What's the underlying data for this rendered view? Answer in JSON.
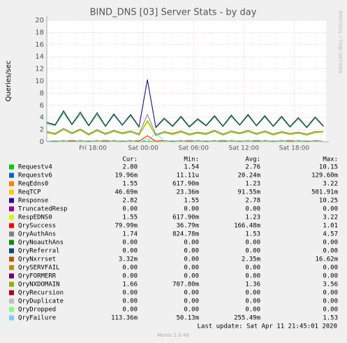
{
  "chart_data": {
    "type": "line",
    "title": "BIND_DNS [03] Server Stats - by day",
    "y_label": "Queries/sec",
    "side_text": "RRDTOOL / TOBI OETIKER",
    "footer": "Last update: Sat Apr 11 21:45:01 2020",
    "version": "Munin 2.0.49",
    "legend_headers": [
      "Cur:",
      "Min:",
      "Avg:",
      "Max:"
    ],
    "grid": true,
    "xlim": [
      12.5,
      45.8
    ],
    "xticks": [
      {
        "value": 18,
        "label": "Fri 18:00"
      },
      {
        "value": 24,
        "label": "Sat 00:00"
      },
      {
        "value": 30,
        "label": "Sat 06:00"
      },
      {
        "value": 36,
        "label": "Sat 12:00"
      },
      {
        "value": 42,
        "label": "Sat 18:00"
      }
    ],
    "ylim": [
      0,
      20
    ],
    "yticks": [
      0,
      2,
      4,
      6,
      8,
      10,
      12,
      14,
      16,
      18,
      20
    ],
    "x": [
      12.5,
      13.5,
      14.5,
      15.5,
      16.5,
      17.5,
      18.5,
      19.5,
      20.5,
      21.5,
      22.5,
      23.5,
      24.5,
      25.5,
      26.5,
      27.5,
      28.5,
      29.5,
      30.5,
      31.5,
      32.5,
      33.5,
      34.5,
      35.5,
      36.5,
      37.5,
      38.5,
      39.5,
      40.5,
      41.5,
      42.5,
      43.5,
      44.5,
      45.5
    ],
    "series": [
      {
        "name": "Requestv4",
        "color": "#00cc00",
        "legend_values": [
          "2.80",
          "1.54",
          "2.76",
          "10.15"
        ],
        "values": [
          3.0,
          2.7,
          4.8,
          2.8,
          4.6,
          2.6,
          4.5,
          2.5,
          4.4,
          2.7,
          4.3,
          2.4,
          10.15,
          2.3,
          3.7,
          2.5,
          4.0,
          2.4,
          3.6,
          2.6,
          4.1,
          2.5,
          4.2,
          2.7,
          4.3,
          2.6,
          4.1,
          2.5,
          4.0,
          2.4,
          3.8,
          2.3,
          3.9,
          2.5
        ]
      },
      {
        "name": "Requestv6",
        "color": "#0066b3",
        "legend_values": [
          "19.96m",
          "11.11u",
          "20.24m",
          "129.60m"
        ],
        "values": [
          0,
          0,
          0,
          0,
          0,
          0,
          0,
          0,
          0,
          0,
          0,
          0,
          0.1,
          0,
          0,
          0,
          0,
          0,
          0,
          0,
          0,
          0,
          0,
          0,
          0,
          0,
          0,
          0,
          0,
          0,
          0,
          0,
          0,
          0
        ]
      },
      {
        "name": "ReqEdns0",
        "color": "#ff8000",
        "legend_values": [
          "1.55",
          "617.90m",
          "1.23",
          "3.22"
        ],
        "values": [
          1.6,
          1.3,
          2.1,
          1.4,
          2.0,
          1.2,
          1.9,
          1.3,
          1.8,
          1.4,
          1.7,
          1.2,
          3.2,
          1.1,
          1.6,
          1.3,
          1.7,
          1.2,
          1.5,
          1.3,
          1.8,
          1.2,
          1.7,
          1.4,
          1.8,
          1.3,
          1.7,
          1.2,
          1.6,
          1.3,
          1.5,
          1.2,
          1.6,
          1.5
        ]
      },
      {
        "name": "ReqTCP",
        "color": "#ffcc00",
        "legend_values": [
          "46.69m",
          "23.36m",
          "91.55m",
          "501.91m"
        ],
        "values": [
          0.05,
          0.05,
          0.1,
          0.05,
          0.1,
          0.05,
          0.1,
          0.05,
          0.1,
          0.05,
          0.1,
          0.05,
          0.5,
          0.05,
          0.1,
          0.05,
          0.1,
          0.05,
          0.1,
          0.05,
          0.1,
          0.05,
          0.1,
          0.05,
          0.1,
          0.05,
          0.1,
          0.05,
          0.1,
          0.05,
          0.1,
          0.05,
          0.1,
          0.05
        ]
      },
      {
        "name": "Response",
        "color": "#330099",
        "legend_values": [
          "2.82",
          "1.55",
          "2.78",
          "10.25"
        ],
        "values": [
          3.2,
          2.8,
          5.1,
          2.9,
          4.9,
          2.7,
          4.8,
          2.6,
          4.6,
          2.8,
          4.5,
          2.5,
          10.25,
          2.4,
          3.9,
          2.6,
          4.2,
          2.5,
          3.8,
          2.7,
          4.3,
          2.6,
          4.4,
          2.8,
          4.5,
          2.7,
          4.3,
          2.6,
          4.2,
          2.5,
          4.0,
          2.4,
          4.1,
          2.6
        ]
      },
      {
        "name": "TruncatedResp",
        "color": "#990099",
        "legend_values": [
          "0.00",
          "0.00",
          "0.00",
          "0.00"
        ],
        "values": [
          0,
          0,
          0,
          0,
          0,
          0,
          0,
          0,
          0,
          0,
          0,
          0,
          0,
          0,
          0,
          0,
          0,
          0,
          0,
          0,
          0,
          0,
          0,
          0,
          0,
          0,
          0,
          0,
          0,
          0,
          0,
          0,
          0,
          0
        ]
      },
      {
        "name": "RespEDNS0",
        "color": "#ccff00",
        "legend_values": [
          "1.55",
          "617.90m",
          "1.23",
          "3.22"
        ],
        "values": [
          1.6,
          1.3,
          2.1,
          1.4,
          2.0,
          1.2,
          1.9,
          1.3,
          1.8,
          1.4,
          1.7,
          1.2,
          3.2,
          1.1,
          1.6,
          1.3,
          1.7,
          1.2,
          1.5,
          1.3,
          1.8,
          1.2,
          1.7,
          1.4,
          1.8,
          1.3,
          1.7,
          1.2,
          1.6,
          1.3,
          1.5,
          1.2,
          1.6,
          1.5
        ]
      },
      {
        "name": "QrySuccess",
        "color": "#ff0000",
        "legend_values": [
          "79.99m",
          "36.79m",
          "166.48m",
          "1.01"
        ],
        "values": [
          0.1,
          0.1,
          0.2,
          0.1,
          0.2,
          0.1,
          0.2,
          0.1,
          0.2,
          0.1,
          0.2,
          0.1,
          1.0,
          0.1,
          0.2,
          0.1,
          0.2,
          0.1,
          0.2,
          0.1,
          0.2,
          0.1,
          0.2,
          0.1,
          0.2,
          0.1,
          0.2,
          0.1,
          0.2,
          0.1,
          0.2,
          0.1,
          0.2,
          0.1
        ]
      },
      {
        "name": "QryAuthAns",
        "color": "#808080",
        "legend_values": [
          "1.74",
          "824.78m",
          "1.53",
          "4.57"
        ],
        "values": [
          1.7,
          1.4,
          2.2,
          1.5,
          2.1,
          1.3,
          2.0,
          1.4,
          1.9,
          1.5,
          1.8,
          1.3,
          4.5,
          1.2,
          1.7,
          1.4,
          1.8,
          1.3,
          1.6,
          1.4,
          1.9,
          1.3,
          1.8,
          1.5,
          1.9,
          1.4,
          1.8,
          1.3,
          1.7,
          1.4,
          1.6,
          1.3,
          1.7,
          1.7
        ]
      },
      {
        "name": "QryNoauthAns",
        "color": "#008f00",
        "legend_values": [
          "0.00",
          "0.00",
          "0.00",
          "0.00"
        ],
        "values": [
          0,
          0,
          0,
          0,
          0,
          0,
          0,
          0,
          0,
          0,
          0,
          0,
          0,
          0,
          0,
          0,
          0,
          0,
          0,
          0,
          0,
          0,
          0,
          0,
          0,
          0,
          0,
          0,
          0,
          0,
          0,
          0,
          0,
          0
        ]
      },
      {
        "name": "QryReferral",
        "color": "#00487d",
        "legend_values": [
          "0.00",
          "0.00",
          "0.00",
          "0.00"
        ],
        "values": [
          0,
          0,
          0,
          0,
          0,
          0,
          0,
          0,
          0,
          0,
          0,
          0,
          0,
          0,
          0,
          0,
          0,
          0,
          0,
          0,
          0,
          0,
          0,
          0,
          0,
          0,
          0,
          0,
          0,
          0,
          0,
          0,
          0,
          0
        ]
      },
      {
        "name": "QryNxrrset",
        "color": "#b35a00",
        "legend_values": [
          "3.32m",
          "0.00",
          "2.35m",
          "16.62m"
        ],
        "values": [
          0,
          0,
          0,
          0,
          0,
          0,
          0,
          0,
          0,
          0,
          0,
          0,
          0,
          0,
          0,
          0,
          0,
          0,
          0,
          0,
          0,
          0,
          0,
          0,
          0,
          0,
          0,
          0,
          0,
          0,
          0,
          0,
          0,
          0
        ]
      },
      {
        "name": "QrySERVFAIL",
        "color": "#b38f00",
        "legend_values": [
          "0.00",
          "0.00",
          "0.00",
          "0.00"
        ],
        "values": [
          0,
          0,
          0,
          0,
          0,
          0,
          0,
          0,
          0,
          0,
          0,
          0,
          0,
          0,
          0,
          0,
          0,
          0,
          0,
          0,
          0,
          0,
          0,
          0,
          0,
          0,
          0,
          0,
          0,
          0,
          0,
          0,
          0,
          0
        ]
      },
      {
        "name": "QryFORMERR",
        "color": "#6b006b",
        "legend_values": [
          "0.00",
          "0.00",
          "0.00",
          "0.00"
        ],
        "values": [
          0,
          0,
          0,
          0,
          0,
          0,
          0,
          0,
          0,
          0,
          0,
          0,
          0,
          0,
          0,
          0,
          0,
          0,
          0,
          0,
          0,
          0,
          0,
          0,
          0,
          0,
          0,
          0,
          0,
          0,
          0,
          0,
          0,
          0
        ]
      },
      {
        "name": "QryNXDOMAIN",
        "color": "#8fb300",
        "legend_values": [
          "1.66",
          "707.80m",
          "1.36",
          "3.56"
        ],
        "values": [
          1.5,
          1.2,
          2.0,
          1.3,
          1.9,
          1.1,
          1.8,
          1.2,
          1.7,
          1.3,
          1.6,
          1.1,
          3.5,
          1.0,
          1.5,
          1.2,
          1.6,
          1.1,
          1.4,
          1.2,
          1.7,
          1.1,
          1.6,
          1.3,
          1.7,
          1.2,
          1.6,
          1.1,
          1.5,
          1.2,
          1.4,
          1.1,
          1.5,
          1.7
        ]
      },
      {
        "name": "QryRecursion",
        "color": "#b30000",
        "legend_values": [
          "0.00",
          "0.00",
          "0.00",
          "0.00"
        ],
        "values": [
          0,
          0,
          0,
          0,
          0,
          0,
          0,
          0,
          0,
          0,
          0,
          0,
          0,
          0,
          0,
          0,
          0,
          0,
          0,
          0,
          0,
          0,
          0,
          0,
          0,
          0,
          0,
          0,
          0,
          0,
          0,
          0,
          0,
          0
        ]
      },
      {
        "name": "QryDuplicate",
        "color": "#bebebe",
        "legend_values": [
          "0.00",
          "0.00",
          "0.00",
          "0.00"
        ],
        "values": [
          0,
          0,
          0,
          0,
          0,
          0,
          0,
          0,
          0,
          0,
          0,
          0,
          0,
          0,
          0,
          0,
          0,
          0,
          0,
          0,
          0,
          0,
          0,
          0,
          0,
          0,
          0,
          0,
          0,
          0,
          0,
          0,
          0,
          0
        ]
      },
      {
        "name": "QryDropped",
        "color": "#80ff80",
        "legend_values": [
          "0.00",
          "0.00",
          "0.00",
          "0.00"
        ],
        "values": [
          0,
          0,
          0,
          0,
          0,
          0,
          0,
          0,
          0,
          0,
          0,
          0,
          0,
          0,
          0,
          0,
          0,
          0,
          0,
          0,
          0,
          0,
          0,
          0,
          0,
          0,
          0,
          0,
          0,
          0,
          0,
          0,
          0,
          0
        ]
      },
      {
        "name": "QryFailure",
        "color": "#80c9ff",
        "legend_values": [
          "113.36m",
          "50.13m",
          "255.49m",
          "1.53"
        ],
        "values": [
          0.1,
          0.2,
          0.1,
          0.3,
          0.1,
          0.2,
          0.1,
          0.3,
          0.1,
          0.2,
          0.1,
          0.3,
          0.1,
          1.5,
          0.1,
          0.2,
          0.1,
          0.3,
          0.1,
          0.2,
          0.1,
          0.3,
          0.1,
          0.2,
          0.1,
          0.3,
          0.1,
          0.2,
          0.1,
          0.3,
          0.1,
          0.2,
          0.1,
          0.1
        ]
      }
    ]
  }
}
